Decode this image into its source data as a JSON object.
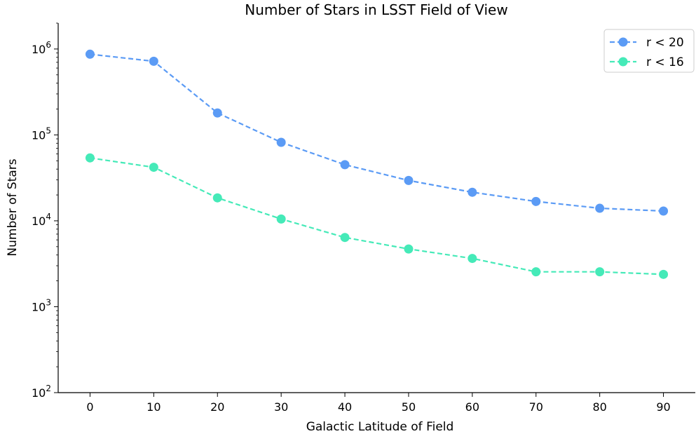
{
  "chart_data": {
    "type": "line",
    "title": "Number of Stars in LSST Field of View",
    "xlabel": "Galactic Latitude of Field",
    "ylabel": "Number of Stars",
    "x": [
      0,
      10,
      20,
      30,
      40,
      50,
      60,
      70,
      80,
      90
    ],
    "xlim": [
      -5,
      95
    ],
    "x_ticks": [
      "0",
      "10",
      "20",
      "30",
      "40",
      "50",
      "60",
      "70",
      "80",
      "90"
    ],
    "y_scale": "log",
    "ylim": [
      100,
      2000000
    ],
    "y_ticks": [
      {
        "value": 100,
        "mantissa": "10",
        "exp": "2"
      },
      {
        "value": 1000,
        "mantissa": "10",
        "exp": "3"
      },
      {
        "value": 10000,
        "mantissa": "10",
        "exp": "4"
      },
      {
        "value": 100000,
        "mantissa": "10",
        "exp": "5"
      },
      {
        "value": 1000000,
        "mantissa": "10",
        "exp": "6"
      }
    ],
    "grid": false,
    "legend_position": "top-right",
    "series": [
      {
        "name": "r < 20",
        "color": "#5b9bf5",
        "line_style": "dashed",
        "marker": "circle",
        "values": [
          870000,
          720000,
          180000,
          82000,
          45000,
          29500,
          21500,
          16800,
          14000,
          13000
        ]
      },
      {
        "name": "r < 16",
        "color": "#45eab8",
        "line_style": "dashed",
        "marker": "circle",
        "values": [
          54000,
          42000,
          18500,
          10500,
          6400,
          4700,
          3650,
          2550,
          2550,
          2380
        ]
      }
    ]
  }
}
